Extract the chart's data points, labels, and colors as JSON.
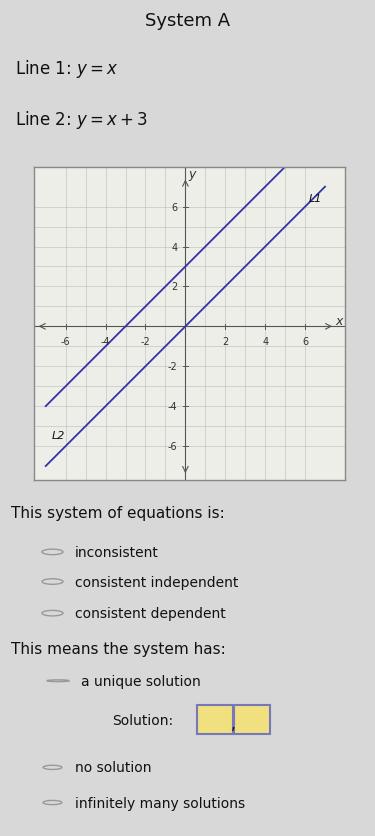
{
  "title": "System A",
  "line1_label_text": "Line 1: $y=x$",
  "line2_label_text": "Line 2: $y=x+3$",
  "bg_color": "#d8d8d8",
  "graph_bg": "#eeeee8",
  "graph_grid_color": "#bbbbbb",
  "graph_axis_color": "#555555",
  "line_color": "#3333aa",
  "axis_range": [
    -7,
    7
  ],
  "tick_vals": [
    -6,
    -4,
    -2,
    2,
    4,
    6
  ],
  "graph_label_L1": "L1",
  "graph_label_L2": "L2",
  "section1_text": "This system of equations is:",
  "options1": [
    "inconsistent",
    "consistent independent",
    "consistent dependent"
  ],
  "section2_text": "This means the system has:",
  "option_unique": "a unique solution",
  "solution_text": "Solution:",
  "options_post": [
    "no solution",
    "infinitely many solutions"
  ],
  "radio_color": "#999999",
  "text_color": "#111111",
  "sol_box_face": "#f0e080",
  "sol_box_edge": "#7777bb",
  "title_fontsize": 13,
  "label_fontsize": 12,
  "body_fontsize": 11,
  "radio_fontsize": 10,
  "graph_tick_fontsize": 7,
  "graph_axis_label_fontsize": 9
}
